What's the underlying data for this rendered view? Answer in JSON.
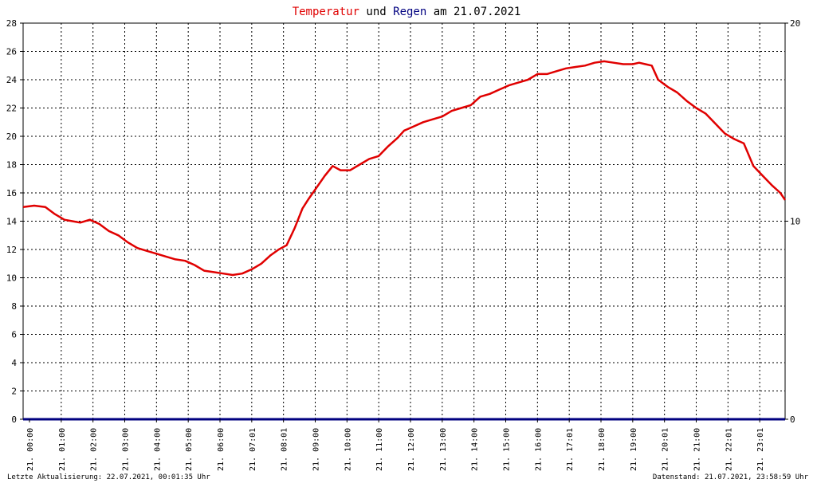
{
  "title": {
    "part1": "Temperatur",
    "part2": " und ",
    "part3": "Regen",
    "part4": " am 21.07.2021"
  },
  "footer": {
    "left": "Letzte Aktualisierung: 22.07.2021, 00:01:35 Uhr",
    "right": "Datenstand: 21.07.2021, 23:58:59 Uhr"
  },
  "colors": {
    "temperature": "#e00000",
    "rain": "#000080",
    "title_text": "#000000",
    "grid": "#000000",
    "axis_text": "#000000"
  },
  "chart_data": {
    "type": "line",
    "x_tick_labels": [
      "21. 00:00",
      "21. 01:00",
      "21. 02:00",
      "21. 03:00",
      "21. 04:00",
      "21. 05:00",
      "21. 06:00",
      "21. 07:01",
      "21. 08:01",
      "21. 09:00",
      "21. 10:00",
      "21. 11:00",
      "21. 12:00",
      "21. 13:00",
      "21. 14:00",
      "21. 15:00",
      "21. 16:00",
      "21. 17:01",
      "21. 18:00",
      "21. 19:00",
      "21. 20:01",
      "21. 21:00",
      "21. 22:01",
      "21. 23:01"
    ],
    "xlim_hours": [
      0,
      24
    ],
    "y_left": {
      "ticks": [
        "0",
        "2",
        "4",
        "6",
        "8",
        "10",
        "12",
        "14",
        "16",
        "18",
        "20",
        "22",
        "24",
        "26",
        "28"
      ],
      "ylim": [
        0,
        28
      ]
    },
    "y_right": {
      "ticks": [
        "0",
        "10",
        "20"
      ],
      "ylim": [
        0,
        20
      ]
    },
    "grid": true,
    "series": [
      {
        "name": "Temperatur",
        "axis": "left",
        "x_hours": [
          0,
          0.35,
          0.7,
          1.0,
          1.3,
          1.55,
          1.8,
          2.1,
          2.4,
          2.7,
          3.0,
          3.3,
          3.6,
          3.9,
          4.2,
          4.5,
          4.8,
          5.1,
          5.4,
          5.7,
          6.0,
          6.3,
          6.6,
          6.9,
          7.2,
          7.5,
          7.8,
          8.05,
          8.3,
          8.55,
          8.8,
          9.0,
          9.25,
          9.5,
          9.75,
          10.0,
          10.3,
          10.6,
          10.9,
          11.2,
          11.5,
          11.8,
          12.0,
          12.3,
          12.6,
          12.9,
          13.2,
          13.5,
          13.8,
          14.1,
          14.4,
          14.7,
          15.0,
          15.3,
          15.6,
          15.9,
          16.2,
          16.5,
          16.8,
          17.1,
          17.4,
          17.7,
          18.0,
          18.3,
          18.6,
          18.9,
          19.2,
          19.4,
          19.6,
          19.8,
          20.0,
          20.3,
          20.6,
          20.9,
          21.2,
          21.5,
          21.8,
          22.1,
          22.4,
          22.7,
          23.0,
          23.3,
          23.6,
          23.85,
          24.0
        ],
        "values": [
          15.0,
          15.1,
          15.0,
          14.5,
          14.1,
          14.0,
          13.9,
          14.1,
          13.8,
          13.3,
          13.0,
          12.5,
          12.1,
          11.9,
          11.7,
          11.5,
          11.3,
          11.2,
          10.9,
          10.5,
          10.4,
          10.3,
          10.2,
          10.3,
          10.6,
          11.0,
          11.6,
          12.0,
          12.3,
          13.5,
          14.9,
          15.6,
          16.4,
          17.2,
          17.9,
          17.6,
          17.6,
          18.0,
          18.4,
          18.6,
          19.3,
          19.9,
          20.4,
          20.7,
          21.0,
          21.2,
          21.4,
          21.8,
          22.0,
          22.2,
          22.8,
          23.0,
          23.3,
          23.6,
          23.8,
          24.0,
          24.4,
          24.4,
          24.6,
          24.8,
          24.9,
          25.0,
          25.2,
          25.3,
          25.2,
          25.1,
          25.1,
          25.2,
          25.1,
          25.0,
          24.0,
          23.5,
          23.1,
          22.5,
          22.0,
          21.6,
          20.9,
          20.2,
          19.8,
          19.5,
          17.9,
          17.2,
          16.5,
          16.0,
          15.5
        ]
      },
      {
        "name": "Regen",
        "axis": "right",
        "x_hours": [
          0,
          24
        ],
        "values": [
          0,
          0
        ]
      }
    ]
  }
}
